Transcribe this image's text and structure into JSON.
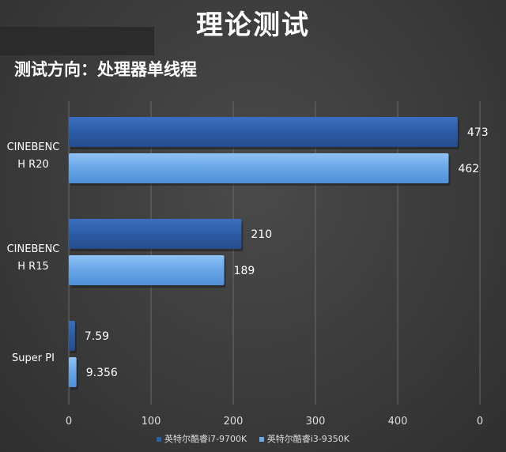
{
  "page": {
    "title": "理论测试",
    "subtitle": "测试方向：处理器单线程"
  },
  "colors": {
    "series1": "#2e5ea8",
    "series2": "#6aa8e8",
    "grid": "#6a6a6a",
    "text": "#ffffff"
  },
  "chart_data": {
    "type": "bar",
    "orientation": "horizontal",
    "categories": [
      "CINEBENCH R20",
      "CINEBENCH R15",
      "Super PI"
    ],
    "category_labels": [
      [
        "CINEBENC",
        "H R20"
      ],
      [
        "CINEBENC",
        "H R15"
      ],
      [
        "Super PI"
      ]
    ],
    "series": [
      {
        "name": "英特尔酷睿i7-9700K",
        "values": [
          473,
          210,
          7.59
        ],
        "labels": [
          "473",
          "210",
          "7.59"
        ]
      },
      {
        "name": "英特尔酷睿i3-9350K",
        "values": [
          462,
          189,
          9.356
        ],
        "labels": [
          "462",
          "189",
          "9.356"
        ]
      }
    ],
    "xticks": [
      "0",
      "100",
      "200",
      "300",
      "400",
      "0"
    ],
    "xlim": [
      0,
      500
    ],
    "grid": true,
    "legend_position": "bottom"
  }
}
